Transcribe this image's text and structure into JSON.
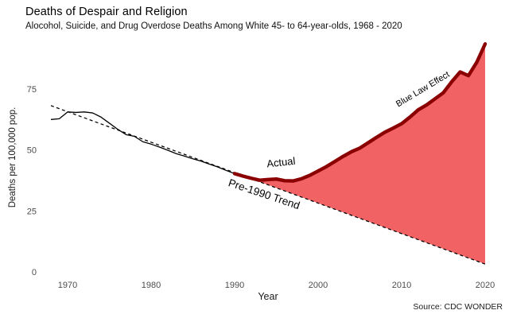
{
  "header": {
    "title": "Deaths of Despair and Religion",
    "subtitle": "Alocohol, Suicide, and Drug Overdose Deaths Among White 45- to 64-year-olds, 1968 - 2020"
  },
  "footer": {
    "source": "Source: CDC WONDER"
  },
  "colors": {
    "background": "#FFFFFF",
    "actual_line_early": "#000000",
    "actual_line_late": "#8B0000",
    "trend_line": "#000000",
    "gap_fill": "#F06264",
    "tick_text": "#4D4D4D",
    "axis_title_text": "#1A1A1A"
  },
  "chart_data": {
    "type": "line",
    "title": "Deaths of Despair and Religion",
    "subtitle": "Alocohol, Suicide, and Drug Overdose Deaths Among White 45- to 64-year-olds, 1968 - 2020",
    "xlabel": "Year",
    "ylabel": "Deaths per 100,000 pop.",
    "source": "Source: CDC WONDER",
    "xlim": [
      1968,
      2020
    ],
    "ylim": [
      0,
      95
    ],
    "x_ticks": [
      1970,
      1980,
      1990,
      2000,
      2010,
      2020
    ],
    "y_ticks": [
      0,
      25,
      50,
      75
    ],
    "grid": false,
    "legend": "inline-annotations",
    "series": [
      {
        "name": "Actual",
        "x": [
          1968,
          1969,
          1970,
          1971,
          1972,
          1973,
          1974,
          1975,
          1976,
          1977,
          1978,
          1979,
          1980,
          1981,
          1982,
          1983,
          1984,
          1985,
          1986,
          1987,
          1988,
          1989,
          1990,
          1991,
          1992,
          1993,
          1994,
          1995,
          1996,
          1997,
          1998,
          1999,
          2000,
          2001,
          2002,
          2003,
          2004,
          2005,
          2006,
          2007,
          2008,
          2009,
          2010,
          2011,
          2012,
          2013,
          2014,
          2015,
          2016,
          2017,
          2018,
          2019,
          2020
        ],
        "values": [
          62.5,
          62.8,
          65.6,
          65.4,
          65.6,
          65.2,
          63.5,
          61.0,
          58.5,
          56.3,
          55.6,
          53.4,
          52.4,
          51.2,
          49.9,
          48.5,
          47.5,
          46.4,
          45.4,
          44.2,
          43.0,
          41.6,
          40.3,
          39.3,
          38.4,
          37.6,
          37.9,
          38.1,
          37.4,
          37.3,
          38.2,
          39.6,
          41.4,
          43.2,
          45.3,
          47.4,
          49.3,
          50.8,
          53.0,
          55.2,
          57.3,
          59.0,
          60.8,
          63.5,
          66.5,
          68.5,
          71.0,
          73.5,
          78.0,
          82.0,
          80.5,
          86.0,
          93.5
        ],
        "style": "solid, thin black before 1990, thick dark red after 1990",
        "style_change_year": 1990,
        "color_early": "#000000",
        "color_late": "#8B0000"
      },
      {
        "name": "Pre-1990 Trend",
        "x": [
          1968,
          2020
        ],
        "values": [
          68.2,
          3.2
        ],
        "style": "dashed",
        "color": "#000000"
      }
    ],
    "fill_between": {
      "upper": "Actual",
      "lower": "Pre-1990 Trend",
      "from_x": 1992,
      "to_x": 2020,
      "color": "#F06264"
    },
    "annotations": [
      {
        "label": "Actual",
        "x": 1995.6,
        "y": 43.5,
        "rotate_deg": -6,
        "font_px": 13
      },
      {
        "label": "Pre-1990 Trend",
        "x": 1993.4,
        "y": 30.5,
        "rotate_deg": 18.5,
        "font_px": 13.5
      },
      {
        "label": "Blue Law Effect",
        "x": 2012.7,
        "y": 74.0,
        "rotate_deg": -31,
        "font_px": 11
      }
    ]
  }
}
